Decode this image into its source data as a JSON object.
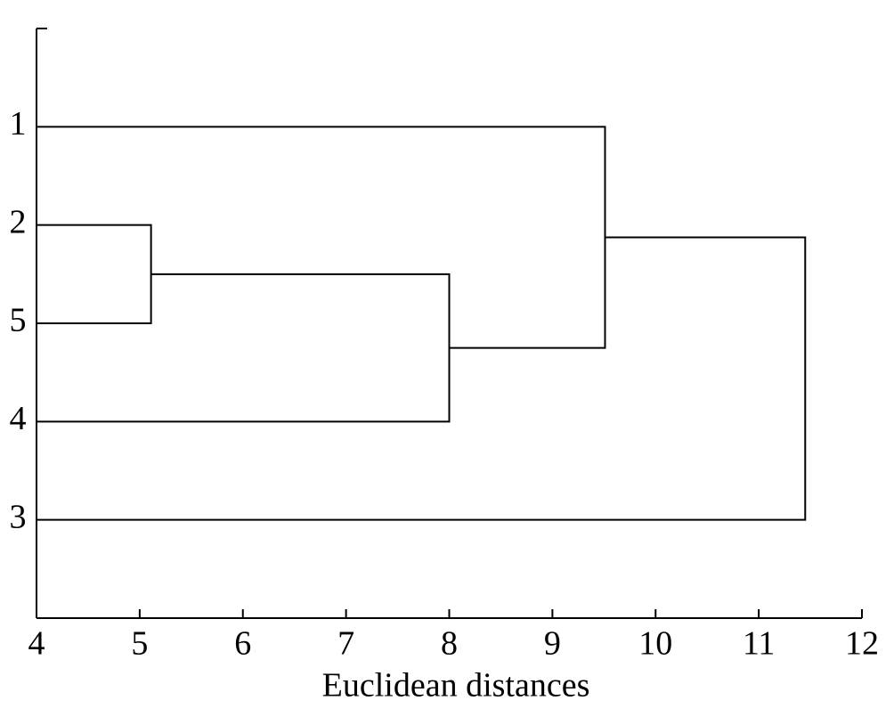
{
  "chart_data": {
    "type": "dendrogram",
    "xlabel": "Euclidean distances",
    "leaves": [
      "1",
      "2",
      "5",
      "4",
      "3"
    ],
    "merges": [
      {
        "children": [
          1,
          2
        ],
        "height": 5.11
      },
      {
        "children": [
          5,
          3
        ],
        "height": 8.0
      },
      {
        "children": [
          0,
          6
        ],
        "height": 9.51
      },
      {
        "children": [
          7,
          4
        ],
        "height": 11.45
      }
    ],
    "xlim": [
      4,
      12
    ],
    "xticks": [
      4,
      5,
      6,
      7,
      8,
      9,
      10,
      11,
      12
    ],
    "color": "#000000"
  }
}
